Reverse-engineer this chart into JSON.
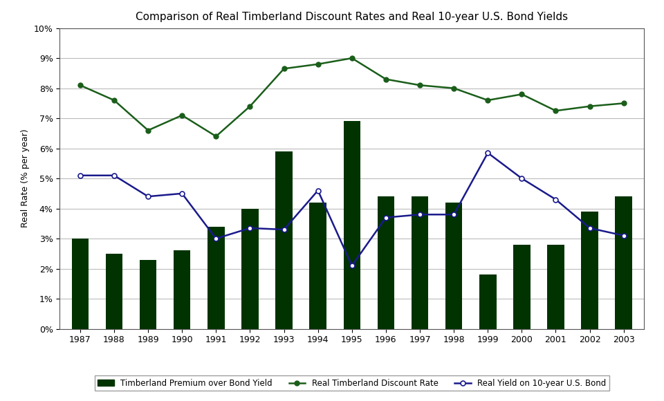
{
  "title": "Comparison of Real Timberland Discount Rates and Real 10-year U.S. Bond Yields",
  "years": [
    1987,
    1988,
    1989,
    1990,
    1991,
    1992,
    1993,
    1994,
    1995,
    1996,
    1997,
    1998,
    1999,
    2000,
    2001,
    2002,
    2003
  ],
  "bar_values": [
    3.0,
    2.5,
    2.3,
    2.6,
    3.4,
    4.0,
    5.9,
    4.2,
    6.9,
    4.4,
    4.4,
    4.2,
    1.8,
    2.8,
    2.8,
    3.9,
    4.4
  ],
  "timberland_rate": [
    8.1,
    7.6,
    6.6,
    7.1,
    6.4,
    7.4,
    8.65,
    8.8,
    9.0,
    8.3,
    8.1,
    8.0,
    7.6,
    7.8,
    7.25,
    7.4,
    7.5
  ],
  "bond_yield": [
    5.1,
    5.1,
    4.4,
    4.5,
    3.0,
    3.35,
    3.3,
    4.6,
    2.1,
    3.7,
    3.8,
    3.8,
    5.85,
    5.0,
    4.3,
    3.35,
    3.1
  ],
  "bar_color": "#003300",
  "timberland_color": "#1a5e1a",
  "bond_color": "#1a1a8c",
  "ylabel": "Real Rate (% per year)",
  "ylim_min": 0,
  "ylim_max": 10,
  "background_color": "#ffffff",
  "grid_color": "#bbbbbb",
  "title_fontsize": 11,
  "axis_fontsize": 9,
  "tick_fontsize": 9
}
